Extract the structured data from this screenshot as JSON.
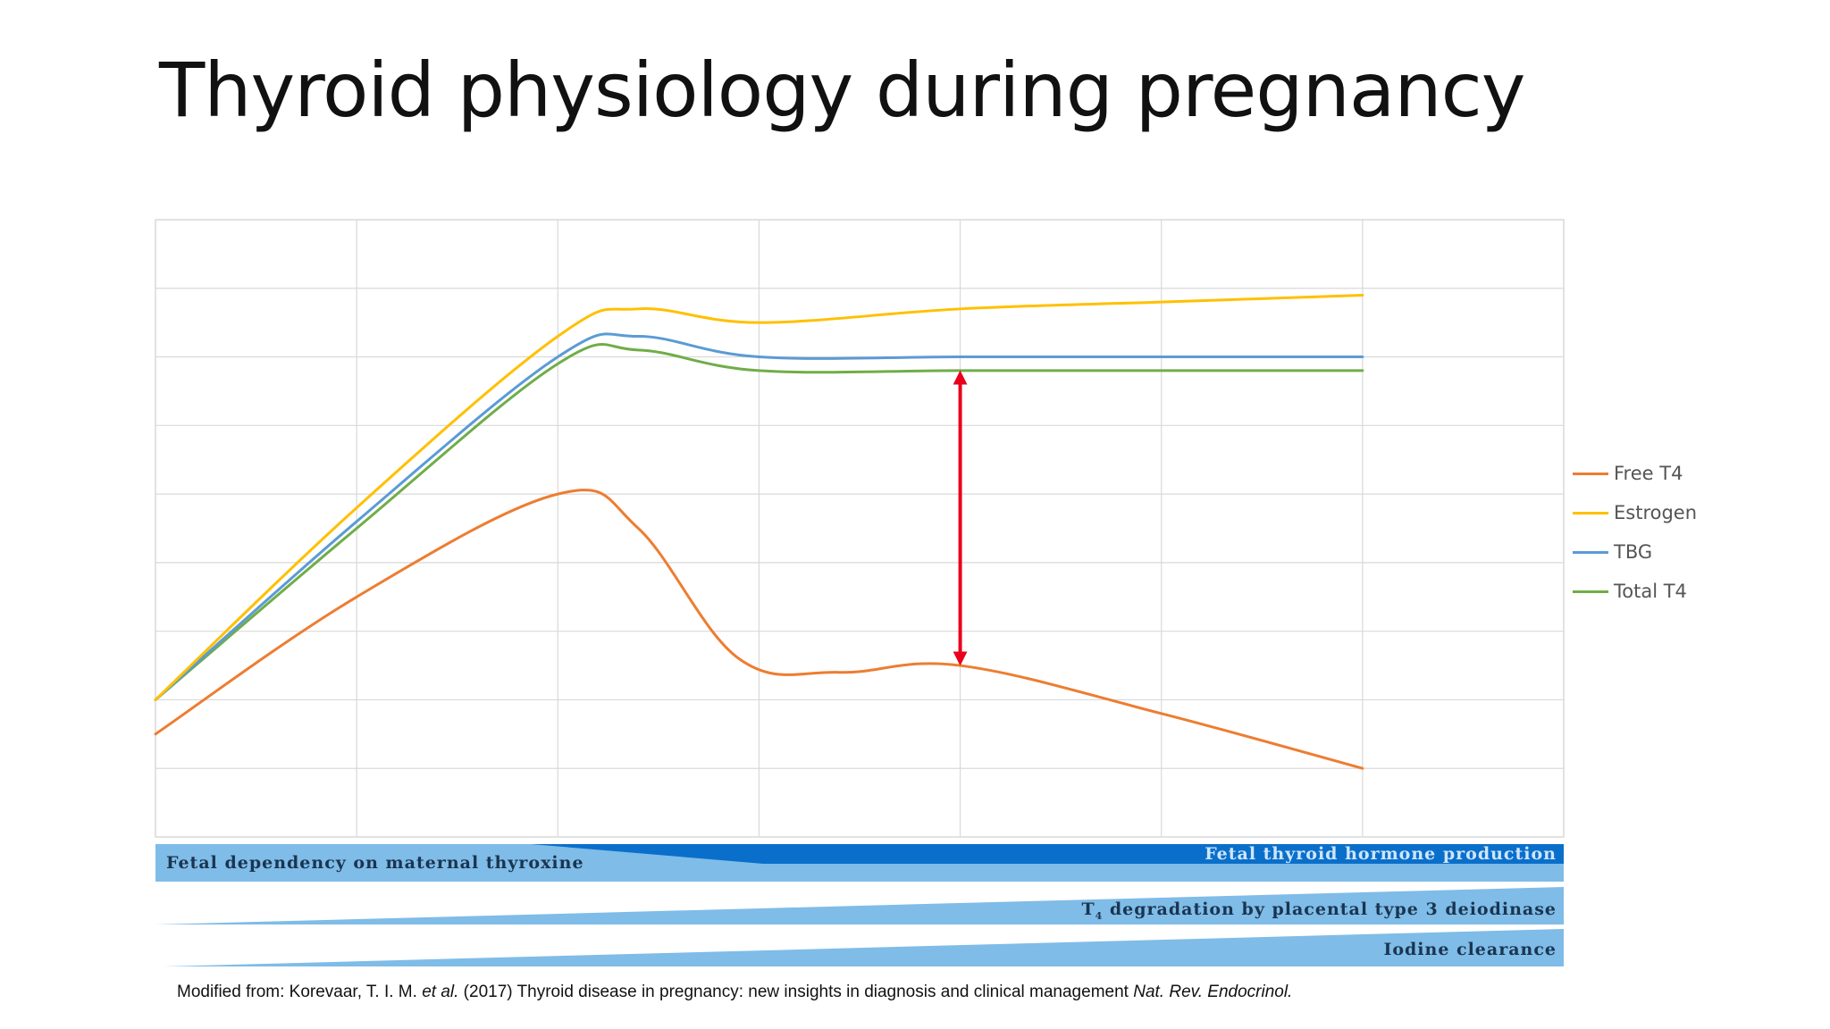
{
  "title": "Thyroid physiology during pregnancy",
  "chart_data": {
    "type": "line",
    "title": "",
    "xlabel": "",
    "ylabel": "",
    "x": [
      0,
      1,
      2,
      3,
      4,
      5,
      6
    ],
    "xlim": [
      0,
      7
    ],
    "ylim": [
      0,
      9
    ],
    "grid": true,
    "legend_position": "right",
    "series": [
      {
        "name": "Free T4",
        "color": "#ED7D31",
        "points": [
          [
            0,
            1.5
          ],
          [
            1,
            3.5
          ],
          [
            2,
            5.0
          ],
          [
            2.4,
            4.5
          ],
          [
            2.9,
            2.6
          ],
          [
            3.4,
            2.4
          ],
          [
            4,
            2.5
          ],
          [
            5,
            1.8
          ],
          [
            6,
            1.0
          ]
        ]
      },
      {
        "name": "Estrogen",
        "color": "#FFC000",
        "points": [
          [
            0,
            2.0
          ],
          [
            1,
            4.8
          ],
          [
            2,
            7.3
          ],
          [
            2.4,
            7.7
          ],
          [
            3,
            7.5
          ],
          [
            4,
            7.7
          ],
          [
            5,
            7.8
          ],
          [
            6,
            7.9
          ]
        ]
      },
      {
        "name": "TBG",
        "color": "#5B9BD5",
        "points": [
          [
            0,
            2.0
          ],
          [
            1,
            4.6
          ],
          [
            2,
            7.0
          ],
          [
            2.4,
            7.3
          ],
          [
            3,
            7.0
          ],
          [
            4,
            7.0
          ],
          [
            5,
            7.0
          ],
          [
            6,
            7.0
          ]
        ]
      },
      {
        "name": "Total T4",
        "color": "#70AD47",
        "points": [
          [
            0,
            2.0
          ],
          [
            1,
            4.5
          ],
          [
            2,
            6.9
          ],
          [
            2.4,
            7.1
          ],
          [
            3,
            6.8
          ],
          [
            4,
            6.8
          ],
          [
            5,
            6.8
          ],
          [
            6,
            6.8
          ]
        ]
      }
    ],
    "annotations": [
      {
        "type": "double-arrow",
        "color": "#E8001C",
        "x": 4,
        "y_from": 2.6,
        "y_to": 6.7
      }
    ]
  },
  "bands": {
    "fetal_dependency": "Fetal dependency on maternal thyroxine",
    "fetal_production": "Fetal thyroid hormone production",
    "t4_degradation_sub": "4",
    "t4_degradation_prefix": "T",
    "t4_degradation": " degradation by placental type 3 deiodinase",
    "iodine": "Iodine clearance",
    "colors": {
      "light": "#7FBCE8",
      "dark": "#0A6FCB"
    }
  },
  "citation": {
    "prefix": "Modified from: Korevaar, T. I. M. ",
    "etal": "et al.",
    "middle": " (2017) Thyroid disease in pregnancy: new insights in diagnosis and clinical management ",
    "journal": "Nat. Rev. Endocrinol."
  }
}
